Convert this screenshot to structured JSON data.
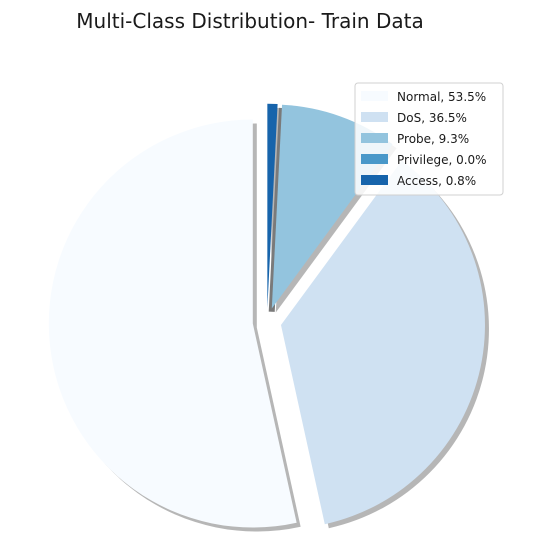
{
  "chart_data": {
    "type": "pie",
    "title": "Multi-Class Distribution- Train Data",
    "slices": [
      {
        "label": "Normal, 53.5%",
        "name": "Normal",
        "value": 53.5,
        "color": "#f7fbff"
      },
      {
        "label": "DoS, 36.5%",
        "name": "DoS",
        "value": 36.5,
        "color": "#cfe1f2"
      },
      {
        "label": "Probe, 9.3%",
        "name": "Probe",
        "value": 9.3,
        "color": "#93c4de"
      },
      {
        "label": "Privilege, 0.0%",
        "name": "Privilege",
        "value": 0.0,
        "color": "#4a98c9"
      },
      {
        "label": "Access, 0.8%",
        "name": "Access",
        "value": 0.8,
        "color": "#1764ab"
      }
    ],
    "start_angle": "90 (top), counterclockwise",
    "exploded": true,
    "shadow": true,
    "legend_position": "top-right"
  }
}
